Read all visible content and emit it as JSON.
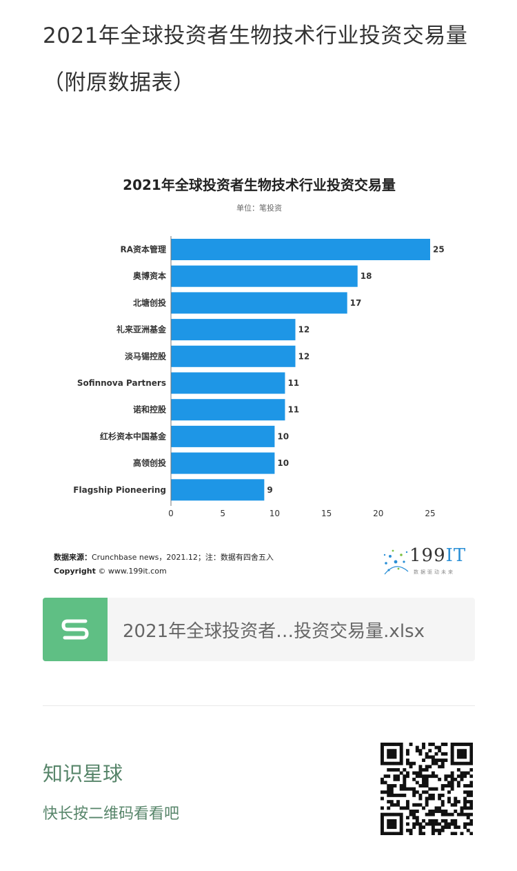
{
  "article": {
    "title": "2021年全球投资者生物技术行业投资交易量（附原数据表）"
  },
  "chart_data": {
    "type": "bar",
    "orientation": "horizontal",
    "title": "2021年全球投资者生物技术行业投资交易量",
    "unit": "单位：笔投资",
    "categories": [
      "RA资本管理",
      "奥博资本",
      "北塘创投",
      "礼来亚洲基金",
      "淡马锡控股",
      "Sofinnova Partners",
      "诺和控股",
      "红杉资本中国基金",
      "高领创投",
      "Flagship Pioneering"
    ],
    "values": [
      25,
      18,
      17,
      12,
      12,
      11,
      11,
      10,
      10,
      9
    ],
    "xlim": [
      0,
      25
    ],
    "xticks": [
      0,
      5,
      10,
      15,
      20,
      25
    ],
    "bar_color": "#1e96e6",
    "grid": false
  },
  "source": {
    "label": "数据来源：",
    "text": "Crunchbase news，2021.12；注：数据有四舍五入",
    "copyright_label": "Copyright",
    "copyright_text": "© www.199it.com"
  },
  "brand": {
    "name_prefix": "199",
    "name_suffix": "IT",
    "slogan": "数据驱动未来"
  },
  "file_card": {
    "icon": "spreadsheet-s-icon",
    "file_name": "2021年全球投资者…投资交易量.xlsx",
    "icon_color": "#5fbf84"
  },
  "promo": {
    "title": "知识星球",
    "subtitle": "快长按二维码看看吧",
    "qr_icon": "qr-code-icon",
    "color": "#57856a"
  }
}
